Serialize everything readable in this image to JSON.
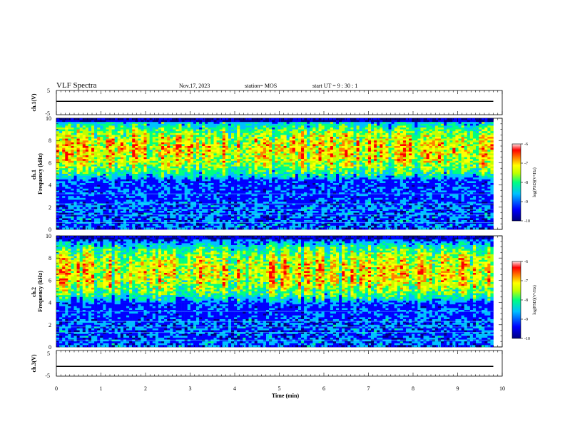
{
  "header": {
    "title": "VLF Spectra",
    "date": "Nov.17, 2023",
    "station": "station= MOS",
    "start": "start  UT =   9 : 30 : 1"
  },
  "chart_data": [
    {
      "type": "line",
      "name": "ch1-waveform",
      "ylabel": "ch.1(V)",
      "ylim": [
        -5,
        5
      ],
      "y_ticks": [
        "5",
        "-5"
      ],
      "x": [
        0,
        9.8
      ],
      "values": [
        0.5,
        0.5
      ]
    },
    {
      "type": "heatmap",
      "name": "ch1-spectrogram",
      "ylabel": "ch.1\nFrequency (kHz)",
      "ylim": [
        0,
        10
      ],
      "y_ticks": [
        "0",
        "2",
        "4",
        "6",
        "8",
        "10"
      ],
      "xlim": [
        0,
        10
      ],
      "data_extent_min": 9.8,
      "band_khz": [
        4.5,
        9.8
      ],
      "colorbar": {
        "label": "log(PSD)(V²/Hz)",
        "range": [
          -10,
          -6
        ],
        "ticks": [
          "-6",
          "-7",
          "-8",
          "-9",
          "-10"
        ]
      }
    },
    {
      "type": "heatmap",
      "name": "ch2-spectrogram",
      "ylabel": "ch.2\nFrequency (kHz)",
      "ylim": [
        0,
        10
      ],
      "y_ticks": [
        "0",
        "2",
        "4",
        "6",
        "8",
        "10"
      ],
      "xlim": [
        0,
        10
      ],
      "data_extent_min": 9.8,
      "band_khz": [
        4.0,
        9.5
      ],
      "colorbar": {
        "label": "log(PSD)(V²/Hz)",
        "range": [
          -10,
          -6
        ],
        "ticks": [
          "-6",
          "-7",
          "-8",
          "-9",
          "-10"
        ]
      }
    },
    {
      "type": "line",
      "name": "ch3-waveform",
      "ylabel": "ch.3(V)",
      "ylim": [
        -5,
        5
      ],
      "y_ticks": [
        "5",
        "-5"
      ],
      "x": [
        0,
        9.8
      ],
      "values": [
        -1.2,
        -1.2
      ]
    }
  ],
  "x_axis": {
    "label": "Time (min)",
    "ticks": [
      "0",
      "1",
      "2",
      "3",
      "4",
      "5",
      "6",
      "7",
      "8",
      "9",
      "10"
    ]
  },
  "colors": {
    "colormap": [
      "#00007f",
      "#0000ff",
      "#00c0ff",
      "#00ff80",
      "#c0ff00",
      "#ffff00",
      "#ff8000",
      "#ff0000",
      "#ffffff"
    ]
  }
}
